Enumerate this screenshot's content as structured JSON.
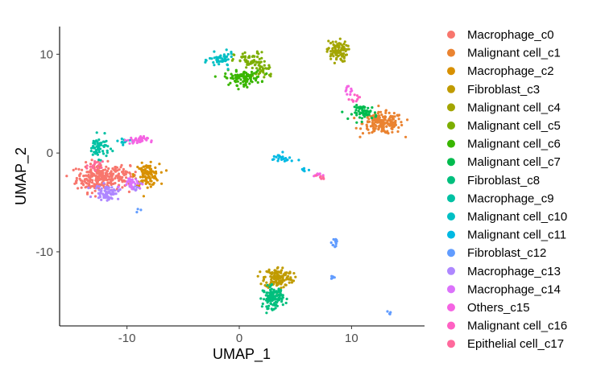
{
  "chart_data": {
    "type": "scatter",
    "xlabel": "UMAP_1",
    "ylabel": "UMAP_2",
    "xlim": [
      -16,
      16.5
    ],
    "ylim": [
      -17.5,
      12.8
    ],
    "xticks": [
      -10,
      0,
      10
    ],
    "yticks": [
      10,
      0,
      -10
    ],
    "grid": false,
    "legend_position": "right",
    "series": [
      {
        "name": "Macrophage_c0",
        "color": "#F8766D",
        "clusters": [
          {
            "x": -12.5,
            "y": -2.5,
            "sx": 1.1,
            "sy": 0.8,
            "n": 260
          },
          {
            "x": -10.2,
            "y": -2.3,
            "sx": 0.6,
            "sy": 0.5,
            "n": 40
          }
        ]
      },
      {
        "name": "Malignant cell_c1",
        "color": "#EA8331",
        "clusters": [
          {
            "x": 12.8,
            "y": 3.0,
            "sx": 1.0,
            "sy": 0.6,
            "n": 180
          }
        ]
      },
      {
        "name": "Macrophage_c2",
        "color": "#D89000",
        "clusters": [
          {
            "x": -8.2,
            "y": -2.2,
            "sx": 0.6,
            "sy": 0.6,
            "n": 110
          }
        ]
      },
      {
        "name": "Fibroblast_c3",
        "color": "#C09B00",
        "clusters": [
          {
            "x": 3.5,
            "y": -12.6,
            "sx": 0.7,
            "sy": 0.6,
            "n": 150
          }
        ]
      },
      {
        "name": "Malignant cell_c4",
        "color": "#A3A500",
        "clusters": [
          {
            "x": 8.7,
            "y": 10.3,
            "sx": 0.5,
            "sy": 0.6,
            "n": 90
          }
        ]
      },
      {
        "name": "Malignant cell_c5",
        "color": "#7CAE00",
        "clusters": [
          {
            "x": 1.0,
            "y": 9.3,
            "sx": 0.8,
            "sy": 0.5,
            "n": 60
          },
          {
            "x": 2.2,
            "y": 8.4,
            "sx": 0.5,
            "sy": 0.5,
            "n": 30
          }
        ]
      },
      {
        "name": "Malignant cell_c6",
        "color": "#39B600",
        "clusters": [
          {
            "x": 0.3,
            "y": 7.6,
            "sx": 0.9,
            "sy": 0.4,
            "n": 100
          }
        ]
      },
      {
        "name": "Malignant cell_c7",
        "color": "#00BB4E",
        "clusters": [
          {
            "x": 11.2,
            "y": 4.1,
            "sx": 0.6,
            "sy": 0.4,
            "n": 60
          }
        ]
      },
      {
        "name": "Fibroblast_c8",
        "color": "#00BF7D",
        "clusters": [
          {
            "x": 3.0,
            "y": -14.6,
            "sx": 0.5,
            "sy": 0.6,
            "n": 120
          }
        ]
      },
      {
        "name": "Macrophage_c9",
        "color": "#00C1A3",
        "clusters": [
          {
            "x": -12.5,
            "y": 0.6,
            "sx": 0.5,
            "sy": 0.6,
            "n": 60
          }
        ]
      },
      {
        "name": "Malignant cell_c10",
        "color": "#00BFC4",
        "clusters": [
          {
            "x": -1.6,
            "y": 9.4,
            "sx": 0.6,
            "sy": 0.4,
            "n": 50
          },
          {
            "x": -10.2,
            "y": 1.2,
            "sx": 0.5,
            "sy": 0.2,
            "n": 12
          }
        ]
      },
      {
        "name": "Malignant cell_c11",
        "color": "#00B9E3",
        "clusters": [
          {
            "x": 3.7,
            "y": -0.6,
            "sx": 0.6,
            "sy": 0.3,
            "n": 22
          },
          {
            "x": 5.8,
            "y": -1.7,
            "sx": 0.2,
            "sy": 0.15,
            "n": 6
          }
        ]
      },
      {
        "name": "Fibroblast_c12",
        "color": "#619CFF",
        "clusters": [
          {
            "x": 8.6,
            "y": -9.0,
            "sx": 0.2,
            "sy": 0.4,
            "n": 12
          },
          {
            "x": 8.3,
            "y": -12.6,
            "sx": 0.1,
            "sy": 0.1,
            "n": 5
          },
          {
            "x": 13.3,
            "y": -16.2,
            "sx": 0.1,
            "sy": 0.1,
            "n": 4
          },
          {
            "x": -8.9,
            "y": -5.9,
            "sx": 0.1,
            "sy": 0.1,
            "n": 3
          }
        ]
      },
      {
        "name": "Macrophage_c13",
        "color": "#AE87FF",
        "clusters": [
          {
            "x": -11.8,
            "y": -4.0,
            "sx": 0.6,
            "sy": 0.4,
            "n": 70
          },
          {
            "x": -9.3,
            "y": -3.4,
            "sx": 0.3,
            "sy": 0.3,
            "n": 15
          }
        ]
      },
      {
        "name": "Macrophage_c14",
        "color": "#DB72FB",
        "clusters": [
          {
            "x": -9.6,
            "y": -3.0,
            "sx": 0.5,
            "sy": 0.3,
            "n": 30
          }
        ]
      },
      {
        "name": "Others_c15",
        "color": "#F564E3",
        "clusters": [
          {
            "x": -9.1,
            "y": 1.3,
            "sx": 0.5,
            "sy": 0.2,
            "n": 40
          },
          {
            "x": 9.6,
            "y": 6.2,
            "sx": 0.25,
            "sy": 0.35,
            "n": 10
          },
          {
            "x": 7.0,
            "y": -2.2,
            "sx": 0.2,
            "sy": 0.15,
            "n": 8
          }
        ]
      },
      {
        "name": "Malignant cell_c16",
        "color": "#FF61C3",
        "clusters": [
          {
            "x": 10.3,
            "y": 5.5,
            "sx": 0.25,
            "sy": 0.3,
            "n": 10
          }
        ]
      },
      {
        "name": "Epithelial cell_c17",
        "color": "#FF699C",
        "clusters": [
          {
            "x": -12.9,
            "y": -1.4,
            "sx": 0.4,
            "sy": 0.3,
            "n": 15
          },
          {
            "x": 7.3,
            "y": -2.5,
            "sx": 0.2,
            "sy": 0.15,
            "n": 6
          }
        ]
      }
    ]
  }
}
